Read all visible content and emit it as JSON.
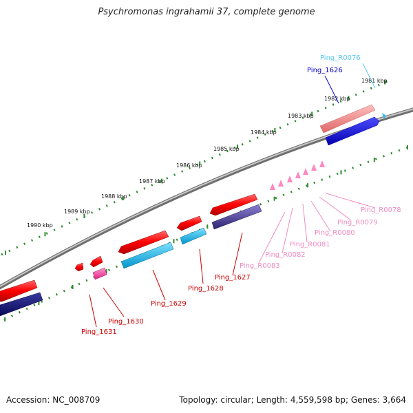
{
  "title": "Psychromonas ingrahamii 37, complete genome",
  "footer": {
    "accession": "Accession: NC_008709",
    "summary": "Topology: circular; Length: 4,559,598 bp; Genes: 3,664"
  },
  "ticks": [
    "1981 kbp",
    "1982 kbp",
    "1983 kbp",
    "1984 kbp",
    "1985 kbp",
    "1986 kbp",
    "1987 kbp",
    "1988 kbp",
    "1989 kbp",
    "1990 kbp"
  ],
  "features": [
    {
      "label": "Ping_R0076",
      "color": "#55c8ee",
      "kind": "tRNA"
    },
    {
      "label": "Ping_1626",
      "color": "#0000cc",
      "kind": "gene"
    },
    {
      "label": "Ping_1627",
      "color": "#cc0000",
      "kind": "gene"
    },
    {
      "label": "Ping_1628",
      "color": "#cc0000",
      "kind": "gene"
    },
    {
      "label": "Ping_1629",
      "color": "#cc0000",
      "kind": "gene"
    },
    {
      "label": "Ping_1630",
      "color": "#cc0000",
      "kind": "gene"
    },
    {
      "label": "Ping_1631",
      "color": "#cc0000",
      "kind": "gene"
    },
    {
      "label": "Ping_R0078",
      "color": "#f08cc0",
      "kind": "tRNA"
    },
    {
      "label": "Ping_R0079",
      "color": "#f08cc0",
      "kind": "tRNA"
    },
    {
      "label": "Ping_R0080",
      "color": "#f08cc0",
      "kind": "tRNA"
    },
    {
      "label": "Ping_R0081",
      "color": "#f08cc0",
      "kind": "tRNA"
    },
    {
      "label": "Ping_R0082",
      "color": "#f08cc0",
      "kind": "tRNA"
    },
    {
      "label": "Ping_R0083",
      "color": "#f08cc0",
      "kind": "tRNA"
    }
  ],
  "colors": {
    "backbone": "#8a8a8a",
    "ruler_dots": "#2e8b2e",
    "gene_red": "#ff0000",
    "gene_blue": "#0000ff",
    "cds_cyan": "#00b4e6",
    "cds_navy": "#1a1a80",
    "cds_purple": "#3b2f8a",
    "pink_light": "#f08080",
    "trna_pink": "#ff69b4"
  }
}
